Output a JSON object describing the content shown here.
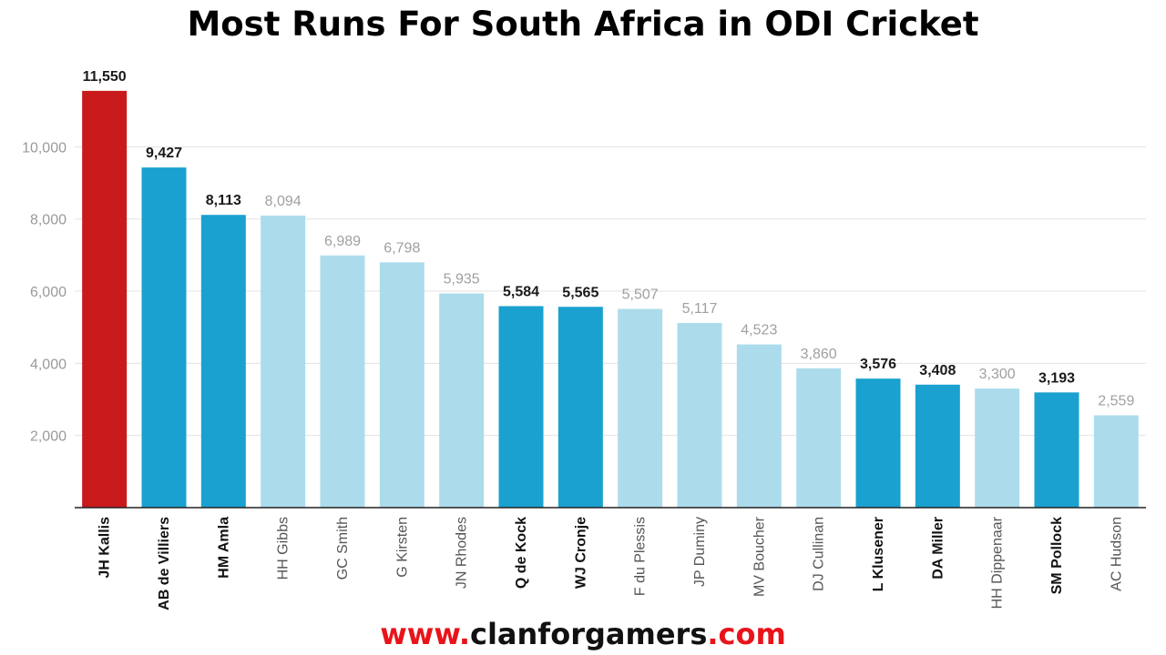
{
  "chart_data": {
    "type": "bar",
    "title": "Most Runs For South Africa in ODI Cricket",
    "xlabel": "",
    "ylabel": "",
    "ylim": [
      0,
      11900
    ],
    "yticks": [
      2000,
      4000,
      6000,
      8000,
      10000
    ],
    "ytick_labels": [
      "2,000",
      "4,000",
      "6,000",
      "8,000",
      "10,000"
    ],
    "grid": true,
    "categories": [
      "JH Kallis",
      "AB de Villiers",
      "HM Amla",
      "HH Gibbs",
      "GC Smith",
      "G Kirsten",
      "JN Rhodes",
      "Q de Kock",
      "WJ Cronje",
      "F du Plessis",
      "JP Duminy",
      "MV Boucher",
      "DJ Cullinan",
      "L Klusener",
      "DA Miller",
      "HH Dippenaar",
      "SM Pollock",
      "AC Hudson"
    ],
    "values": [
      11550,
      9427,
      8113,
      8094,
      6989,
      6798,
      5935,
      5584,
      5565,
      5507,
      5117,
      4523,
      3860,
      3576,
      3408,
      3300,
      3193,
      2559
    ],
    "value_labels": [
      "11,550",
      "9,427",
      "8,113",
      "8,094",
      "6,989",
      "6,798",
      "5,935",
      "5,584",
      "5,565",
      "5,507",
      "5,117",
      "4,523",
      "3,860",
      "3,576",
      "3,408",
      "3,300",
      "3,193",
      "2,559"
    ],
    "bar_colors": [
      "#c8191b",
      "#1aa1cf",
      "#1aa1cf",
      "#acdcec",
      "#acdcec",
      "#acdcec",
      "#acdcec",
      "#1aa1cf",
      "#1aa1cf",
      "#acdcec",
      "#acdcec",
      "#acdcec",
      "#acdcec",
      "#1aa1cf",
      "#1aa1cf",
      "#acdcec",
      "#1aa1cf",
      "#acdcec"
    ],
    "bold_labels": [
      true,
      true,
      true,
      false,
      false,
      false,
      false,
      true,
      true,
      false,
      false,
      false,
      false,
      true,
      true,
      false,
      true,
      false
    ]
  },
  "footer": {
    "prefix": "www.",
    "domain": "clanforgamers",
    "suffix": ".com"
  },
  "colors": {
    "highlight": "#c8191b",
    "active": "#1aa1cf",
    "retired": "#acdcec",
    "footer_red": "#e8141a"
  }
}
